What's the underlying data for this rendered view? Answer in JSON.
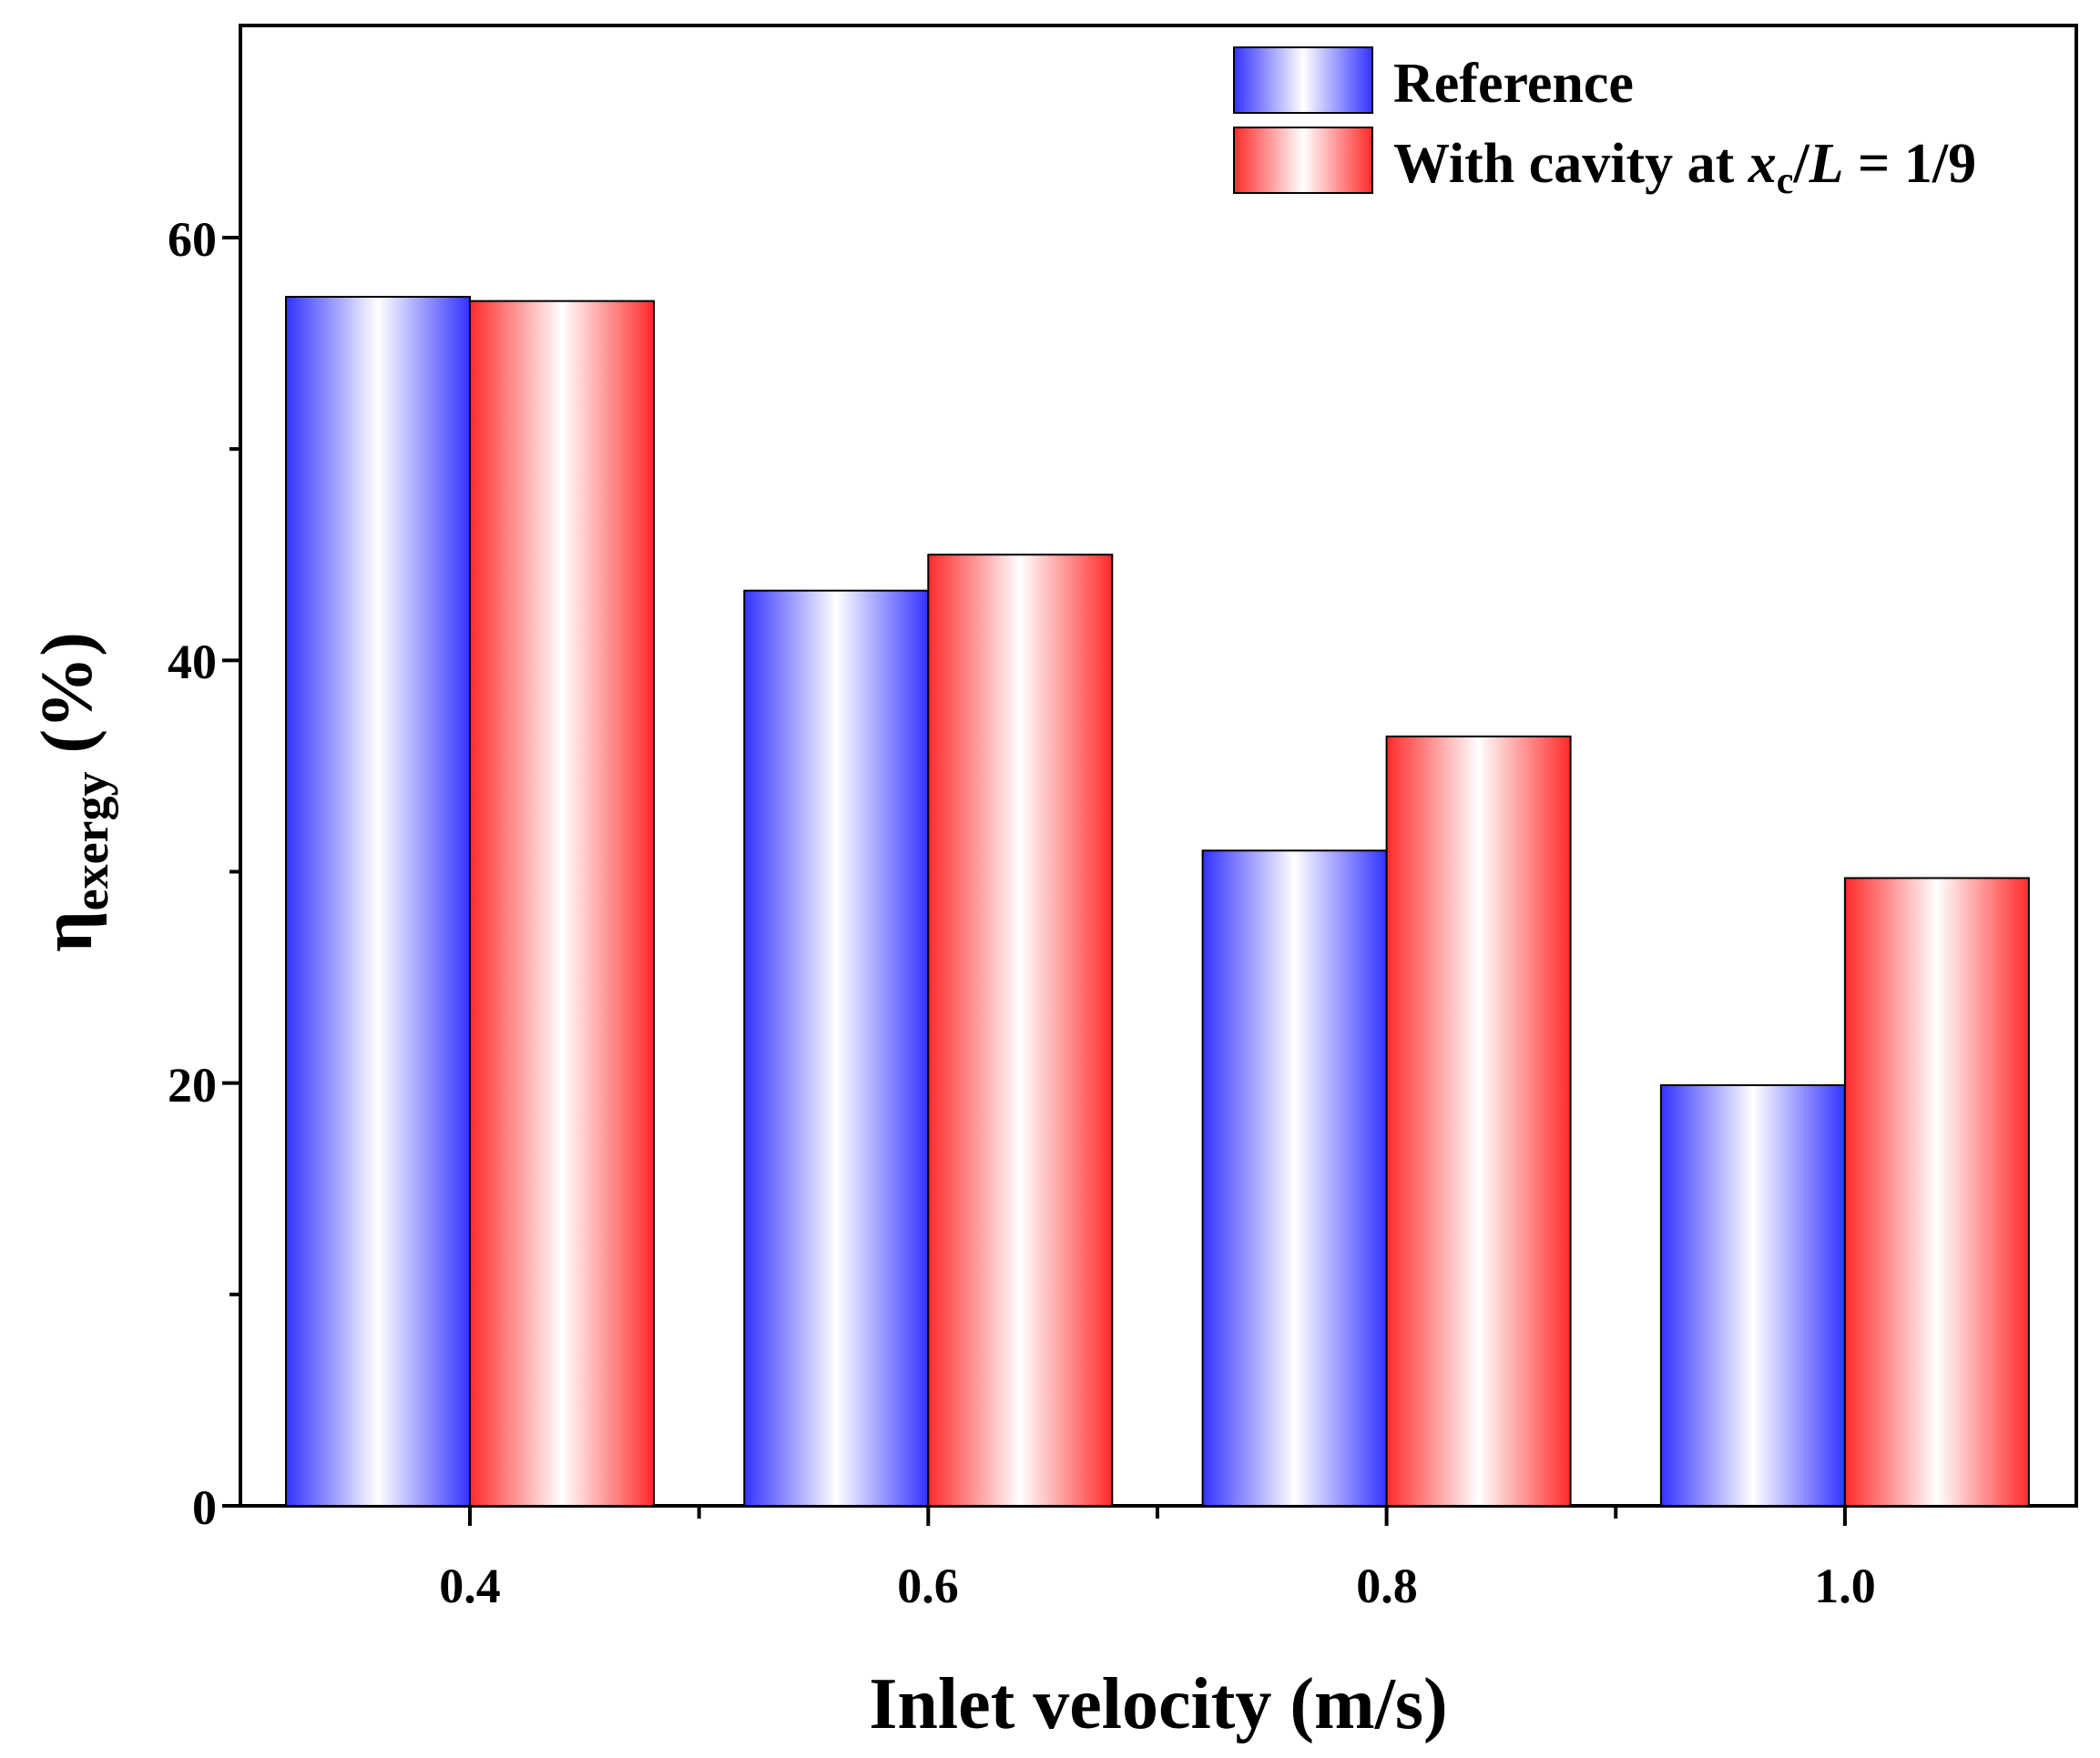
{
  "chart_data": {
    "type": "bar",
    "categories": [
      "0.4",
      "0.6",
      "0.8",
      "1.0"
    ],
    "series": [
      {
        "name": "Reference",
        "values": [
          57.2,
          43.3,
          31.0,
          19.9
        ],
        "color": "#3333ff"
      },
      {
        "name": "With cavity at x_c/L = 1/9",
        "values": [
          57.0,
          45.0,
          36.4,
          29.7
        ],
        "color": "#ff2a2a"
      }
    ],
    "legend": {
      "reference_label": "Reference",
      "cavity_prefix": "With cavity at ",
      "cavity_x": "x",
      "cavity_sub": "c",
      "cavity_slash": "/",
      "cavity_L": "L",
      "cavity_suffix": " = 1/9"
    },
    "xlabel": "Inlet velocity (m/s)",
    "ylabel": {
      "main": "η",
      "sub": "exergy",
      "unit": " (%)"
    },
    "yticks": [
      "0",
      "20",
      "40",
      "60"
    ],
    "ylim": [
      0,
      70
    ],
    "legend_position": "top-right"
  }
}
